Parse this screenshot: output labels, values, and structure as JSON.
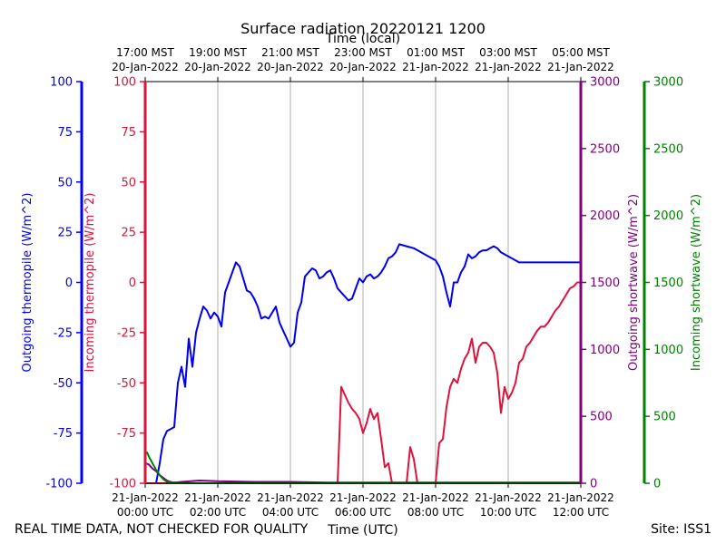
{
  "footer": {
    "disclaimer": "REAL TIME DATA, NOT CHECKED FOR QUALITY",
    "site": "Site: ISS1"
  },
  "chart_data": {
    "type": "line",
    "title": "Surface radiation 20220121 1200",
    "xlabel": "Time (UTC)",
    "xlabel_top": "Time (local)",
    "xlim": [
      0,
      12
    ],
    "x_ticks_bottom": [
      {
        "line1": "21-Jan-2022",
        "line2": "00:00 UTC"
      },
      {
        "line1": "21-Jan-2022",
        "line2": "02:00 UTC"
      },
      {
        "line1": "21-Jan-2022",
        "line2": "04:00 UTC"
      },
      {
        "line1": "21-Jan-2022",
        "line2": "06:00 UTC"
      },
      {
        "line1": "21-Jan-2022",
        "line2": "08:00 UTC"
      },
      {
        "line1": "21-Jan-2022",
        "line2": "10:00 UTC"
      },
      {
        "line1": "21-Jan-2022",
        "line2": "12:00 UTC"
      }
    ],
    "x_ticks_top": [
      {
        "line1": "17:00 MST",
        "line2": "20-Jan-2022"
      },
      {
        "line1": "19:00 MST",
        "line2": "20-Jan-2022"
      },
      {
        "line1": "21:00 MST",
        "line2": "20-Jan-2022"
      },
      {
        "line1": "23:00 MST",
        "line2": "20-Jan-2022"
      },
      {
        "line1": "01:00 MST",
        "line2": "21-Jan-2022"
      },
      {
        "line1": "03:00 MST",
        "line2": "21-Jan-2022"
      },
      {
        "line1": "05:00 MST",
        "line2": "21-Jan-2022"
      }
    ],
    "x_tick_values": [
      0,
      2,
      4,
      6,
      8,
      10,
      12
    ],
    "grid": "vertical",
    "axes": {
      "outgoing_thermopile": {
        "label": "Outgoing thermopile (W/m^2)",
        "color": "#0000ee",
        "ylim": [
          -100,
          100
        ],
        "ticks": [
          -100,
          -75,
          -50,
          -25,
          0,
          25,
          50,
          75,
          100
        ],
        "side": "left-outer"
      },
      "incoming_thermopile": {
        "label": "Incoming thermopile (W/m^2)",
        "color": "#dc143c",
        "ylim": [
          -100,
          100
        ],
        "ticks": [
          -100,
          -75,
          -50,
          -25,
          0,
          25,
          50,
          75,
          100
        ],
        "side": "left-inner"
      },
      "outgoing_shortwave": {
        "label": "Outgoing shortwave (W/m^2)",
        "color": "#800080",
        "ylim": [
          0,
          3000
        ],
        "ticks": [
          0,
          500,
          1000,
          1500,
          2000,
          2500,
          3000
        ],
        "side": "right-inner"
      },
      "incoming_shortwave": {
        "label": "Incoming shortwave (W/m^2)",
        "color": "#008000",
        "ylim": [
          0,
          3000
        ],
        "ticks": [
          0,
          500,
          1000,
          1500,
          2000,
          2500,
          3000
        ],
        "side": "right-outer"
      }
    },
    "series": [
      {
        "axis": "outgoing_thermopile",
        "color": "#0000ee",
        "x": [
          0.3,
          0.4,
          0.5,
          0.6,
          0.7,
          0.8,
          0.9,
          1.0,
          1.1,
          1.2,
          1.25,
          1.3,
          1.4,
          1.5,
          1.6,
          1.7,
          1.8,
          1.9,
          2.0,
          2.1,
          2.2,
          2.3,
          2.4,
          2.5,
          2.6,
          2.7,
          2.8,
          2.9,
          3.0,
          3.1,
          3.2,
          3.3,
          3.4,
          3.5,
          3.6,
          3.7,
          3.8,
          3.9,
          4.0,
          4.1,
          4.2,
          4.3,
          4.4,
          4.5,
          4.6,
          4.7,
          4.8,
          4.9,
          5.0,
          5.1,
          5.2,
          5.3,
          5.4,
          5.5,
          5.6,
          5.7,
          5.8,
          5.9,
          6.0,
          6.1,
          6.2,
          6.3,
          6.4,
          6.5,
          6.6,
          6.7,
          6.8,
          6.9,
          7.0,
          7.2,
          7.4,
          7.6,
          7.8,
          8.0,
          8.1,
          8.2,
          8.3,
          8.4,
          8.5,
          8.6,
          8.7,
          8.8,
          8.9,
          9.0,
          9.1,
          9.2,
          9.3,
          9.4,
          9.5,
          9.6,
          9.7,
          9.8,
          9.9,
          10.0,
          10.1,
          10.2,
          10.3,
          10.4,
          10.5,
          10.6,
          10.7,
          10.8,
          10.9,
          11.0,
          11.1,
          11.2,
          11.3,
          11.4,
          11.5,
          11.6,
          11.7,
          11.8,
          11.9,
          12.0
        ],
        "values": [
          -100,
          -90,
          -78,
          -74,
          -73,
          -72,
          -50,
          -42,
          -52,
          -28,
          -35,
          -42,
          -25,
          -18,
          -12,
          -14,
          -18,
          -15,
          -17,
          -22,
          -5,
          0,
          5,
          10,
          8,
          2,
          -4,
          -5,
          -8,
          -12,
          -18,
          -17,
          -18,
          -15,
          -12,
          -20,
          -24,
          -28,
          -32,
          -30,
          -15,
          -10,
          3,
          5,
          7,
          6,
          2,
          3,
          5,
          6,
          2,
          -3,
          -5,
          -7,
          -9,
          -8,
          -3,
          2,
          0,
          3,
          4,
          2,
          3,
          5,
          8,
          12,
          13,
          15,
          19,
          18,
          17,
          15,
          13,
          11,
          8,
          3,
          -5,
          -12,
          0,
          0,
          5,
          8,
          14,
          12,
          13,
          15,
          16,
          16,
          17,
          18,
          17,
          15,
          14,
          13,
          12,
          11,
          10,
          10,
          10,
          10,
          10,
          10,
          10,
          10,
          10,
          10,
          10,
          10,
          10,
          10,
          10,
          10,
          10,
          10
        ]
      },
      {
        "axis": "incoming_thermopile",
        "color": "#dc143c",
        "x": [
          0,
          2.5,
          3.0,
          5.0,
          5.2,
          5.3,
          5.4,
          5.5,
          5.6,
          5.7,
          5.8,
          5.9,
          6.0,
          6.1,
          6.2,
          6.3,
          6.4,
          6.5,
          6.6,
          6.7,
          6.8,
          7.0,
          7.2,
          7.3,
          7.4,
          7.5,
          7.6,
          7.7,
          7.8,
          7.9,
          8.0,
          8.1,
          8.2,
          8.3,
          8.4,
          8.5,
          8.6,
          8.7,
          8.8,
          8.9,
          9.0,
          9.1,
          9.2,
          9.3,
          9.4,
          9.5,
          9.6,
          9.7,
          9.8,
          9.9,
          10.0,
          10.1,
          10.2,
          10.3,
          10.4,
          10.5,
          10.6,
          10.7,
          10.8,
          10.9,
          11.0,
          11.1,
          11.2,
          11.3,
          11.4,
          11.5,
          11.6,
          11.7,
          11.8,
          11.9,
          12.0
        ],
        "values": [
          -100,
          -100,
          -100,
          -100,
          -100,
          -100,
          -52,
          -56,
          -60,
          -63,
          -65,
          -68,
          -75,
          -70,
          -63,
          -68,
          -65,
          -78,
          -92,
          -90,
          -100,
          -100,
          -100,
          -82,
          -88,
          -100,
          -100,
          -100,
          -100,
          -100,
          -100,
          -80,
          -78,
          -62,
          -52,
          -48,
          -50,
          -43,
          -38,
          -35,
          -28,
          -40,
          -32,
          -30,
          -30,
          -32,
          -35,
          -45,
          -65,
          -52,
          -58,
          -55,
          -50,
          -40,
          -38,
          -32,
          -30,
          -27,
          -24,
          -22,
          -22,
          -20,
          -17,
          -14,
          -12,
          -9,
          -6,
          -3,
          -2,
          0,
          0
        ]
      },
      {
        "axis": "outgoing_shortwave",
        "color": "#800080",
        "x": [
          0,
          0.1,
          0.2,
          0.3,
          0.4,
          0.5,
          0.6,
          0.7,
          0.8,
          1.0,
          1.5,
          2.0,
          3.0,
          4.0,
          5.0,
          6.0,
          7.0,
          8.0,
          9.0,
          10.0,
          11.0,
          12.0
        ],
        "values": [
          150,
          140,
          110,
          90,
          60,
          40,
          20,
          10,
          5,
          10,
          20,
          15,
          10,
          10,
          5,
          5,
          5,
          5,
          5,
          5,
          5,
          5
        ]
      },
      {
        "axis": "incoming_shortwave",
        "color": "#008000",
        "x": [
          0,
          0.05,
          0.1,
          0.2,
          0.3,
          0.4,
          0.5,
          0.6,
          0.8,
          1.0,
          2.0,
          4.0,
          6.0,
          8.0,
          10.0,
          12.0
        ],
        "values": [
          220,
          230,
          200,
          150,
          100,
          60,
          30,
          10,
          5,
          0,
          0,
          0,
          0,
          0,
          0,
          0
        ]
      }
    ]
  }
}
